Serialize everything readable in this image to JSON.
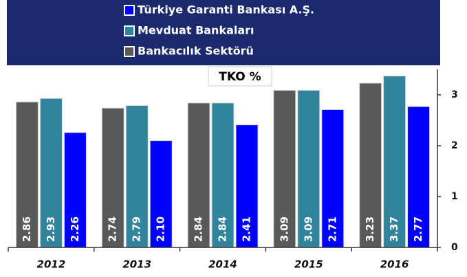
{
  "chart_data": {
    "type": "bar",
    "title": "TKO %",
    "categories": [
      "2012",
      "2013",
      "2014",
      "2015",
      "2016"
    ],
    "series": [
      {
        "name": "Türkiye Garanti Bankası A.Ş.",
        "color": "#0000ff",
        "values": [
          2.26,
          2.1,
          2.41,
          2.71,
          2.77
        ],
        "value_labels": [
          "2.26",
          "2.10",
          "2.41",
          "2.71",
          "2.77"
        ]
      },
      {
        "name": "Mevduat Bankaları",
        "color": "#31849b",
        "values": [
          2.93,
          2.79,
          2.84,
          3.09,
          3.37
        ],
        "value_labels": [
          "2.93",
          "2.79",
          "2.84",
          "3.09",
          "3.37"
        ]
      },
      {
        "name": "Bankacılık Sektörü",
        "color": "#595959",
        "values": [
          2.86,
          2.74,
          2.84,
          3.09,
          3.23
        ],
        "value_labels": [
          "2.86",
          "2.74",
          "2.84",
          "3.09",
          "3.23"
        ]
      }
    ],
    "ylim": [
      0,
      3.5
    ],
    "yticks": [
      0,
      1,
      2,
      3
    ],
    "legend": "top"
  }
}
